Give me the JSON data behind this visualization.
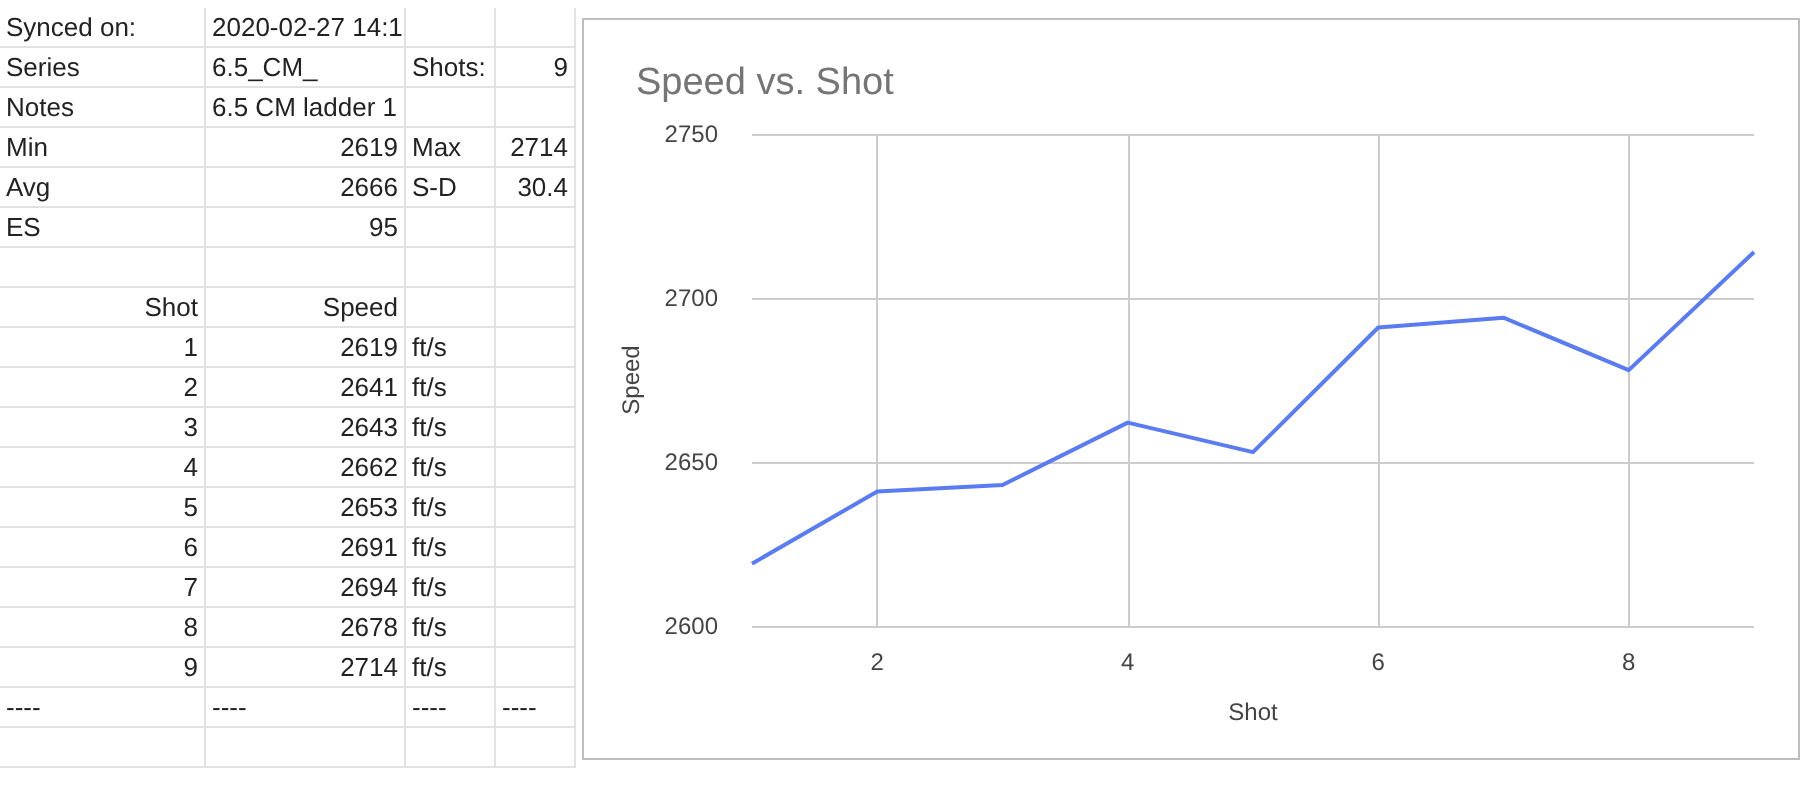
{
  "chart_data": {
    "type": "line",
    "title": "Speed vs. Shot",
    "xlabel": "Shot",
    "ylabel": "Speed",
    "x": [
      1,
      2,
      3,
      4,
      5,
      6,
      7,
      8,
      9
    ],
    "series": [
      {
        "color": "#5b7cf0",
        "values": [
          2619,
          2641,
          2643,
          2662,
          2653,
          2691,
          2694,
          2678,
          2714
        ]
      }
    ],
    "xlim": [
      1,
      9
    ],
    "xticks": [
      2,
      4,
      6,
      8
    ],
    "ylim": [
      2600,
      2750
    ],
    "yticks": [
      2600,
      2650,
      2700,
      2750
    ],
    "grid": true,
    "annotations": [
      "Synced on:",
      "2020-02-27 14:1",
      "Series",
      "6.5_CM_",
      "Shots:",
      "9",
      "Notes",
      "6.5 CM ladder 1",
      "Min",
      "2619",
      "Max",
      "2714",
      "Avg",
      "2666",
      "S-D",
      "30.4",
      "ES",
      "95",
      "Shot",
      "Speed",
      "1",
      "2619",
      "ft/s",
      "2",
      "2641",
      "ft/s",
      "3",
      "2643",
      "ft/s",
      "4",
      "2662",
      "ft/s",
      "5",
      "2653",
      "ft/s",
      "6",
      "2691",
      "ft/s",
      "7",
      "2694",
      "ft/s",
      "8",
      "2678",
      "ft/s",
      "9",
      "2714",
      "ft/s",
      "----",
      "----",
      "----",
      "----"
    ]
  }
}
